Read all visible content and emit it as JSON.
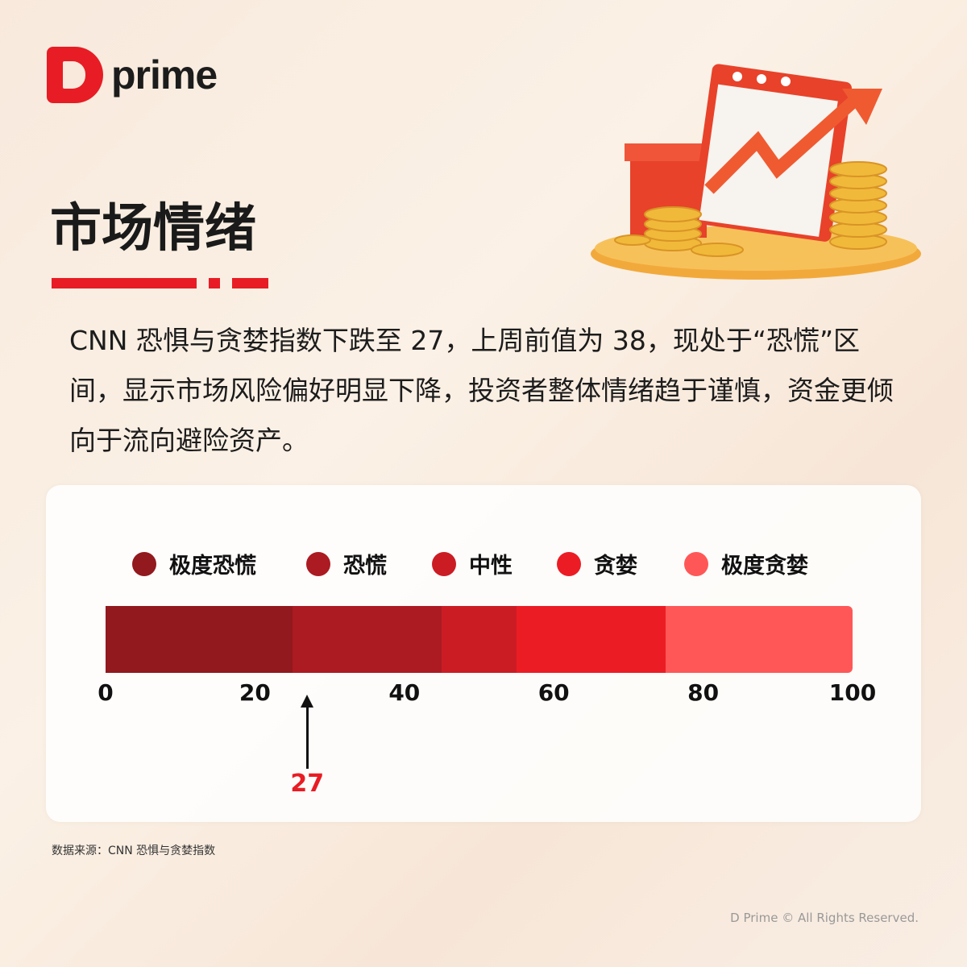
{
  "brand": {
    "logo_text": "prime"
  },
  "title": "市场情绪",
  "body": "CNN 恐惧与贪婪指数下跌至 27，上周前值为 38，现处于“恐慌”区间，显示市场风险偏好明显下降，投资者整体情绪趋于谨慎，资金更倾向于流向避险资产。",
  "chart_data": {
    "type": "bar",
    "title": "",
    "xlim": [
      0,
      100
    ],
    "ticks": [
      "0",
      "20",
      "40",
      "60",
      "80",
      "100"
    ],
    "zones": [
      {
        "name": "极度恐慌",
        "from": 0,
        "to": 25,
        "color": "#92191e"
      },
      {
        "name": "恐慌",
        "from": 25,
        "to": 45,
        "color": "#ac1a22"
      },
      {
        "name": "中性",
        "from": 45,
        "to": 55,
        "color": "#cb1c24"
      },
      {
        "name": "贪婪",
        "from": 55,
        "to": 75,
        "color": "#ec1c24"
      },
      {
        "name": "极度贪婪",
        "from": 75,
        "to": 100,
        "color": "#ff5757"
      }
    ],
    "marker": {
      "value": 27,
      "label": "27",
      "color": "#e81c24"
    },
    "legend_position": "top"
  },
  "source": "数据来源：CNN 恐惧与贪婪指数",
  "copyright": "D Prime © All Rights Reserved."
}
